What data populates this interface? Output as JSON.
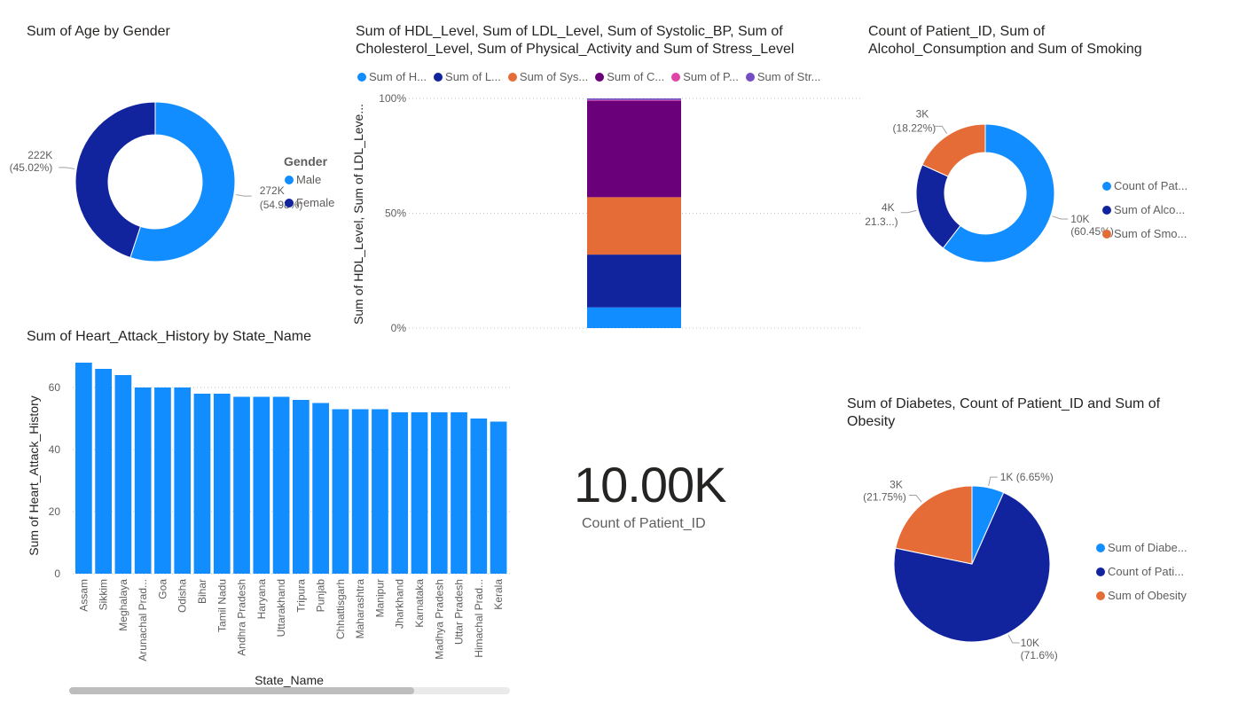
{
  "colors": {
    "light_blue": "#118DFF",
    "dark_blue": "#12239E",
    "orange": "#E66C37",
    "purple": "#6B007B",
    "pink": "#E044A7",
    "deep_purple": "#744EC2"
  },
  "chart_data": [
    {
      "id": "age_by_gender",
      "type": "pie",
      "donut": true,
      "title": "Sum of Age by Gender",
      "legend_title": "Gender",
      "categories": [
        "Male",
        "Female"
      ],
      "values": [
        272,
        222
      ],
      "value_labels": [
        "272K",
        "222K"
      ],
      "percent_labels": [
        "(54.98%)",
        "(45.02%)"
      ],
      "legend_placement": "right"
    },
    {
      "id": "health_levels",
      "type": "bar",
      "stacked_percent": true,
      "title_line1": "Sum of HDL_Level, Sum of LDL_Level, Sum of Systolic_BP, Sum of",
      "title_line2": "Cholesterol_Level, Sum of Physical_Activity and Sum of Stress_Level",
      "ylabel": "Sum of HDL_Level, Sum of LDL_Leve...",
      "yticks": [
        "100%",
        "50%",
        "0%"
      ],
      "ylim": [
        0,
        100
      ],
      "grid": true,
      "legend_placement": "top",
      "series": [
        {
          "name": "Sum of H...",
          "values": [
            9
          ]
        },
        {
          "name": "Sum of L...",
          "values": [
            23
          ]
        },
        {
          "name": "Sum of Sys...",
          "values": [
            25
          ]
        },
        {
          "name": "Sum of C...",
          "values": [
            42
          ]
        },
        {
          "name": "Sum of P...",
          "values": [
            0.3
          ]
        },
        {
          "name": "Sum of Str...",
          "values": [
            0.7
          ]
        }
      ]
    },
    {
      "id": "patient_alcohol_smoking",
      "type": "pie",
      "donut": true,
      "title_line1": "Count of Patient_ID, Sum of",
      "title_line2": "Alcohol_Consumption and Sum of Smoking",
      "legend_placement": "right",
      "categories": [
        "Count of Pat...",
        "Sum of Alco...",
        "Sum of Smo..."
      ],
      "values": [
        60.45,
        21.33,
        18.22
      ],
      "value_labels": [
        "10K",
        "4K",
        "3K"
      ],
      "percent_labels": [
        "(60.45%)",
        "(21.3...)",
        "(18.22%)"
      ]
    },
    {
      "id": "heart_attack_by_state",
      "type": "bar",
      "title": "Sum of Heart_Attack_History by State_Name",
      "xlabel": "State_Name",
      "ylabel": "Sum of Heart_Attack_History",
      "yticks": [
        0,
        20,
        40,
        60
      ],
      "ylim": [
        0,
        70
      ],
      "grid": true,
      "categories": [
        "Assam",
        "Sikkim",
        "Meghalaya",
        "Arunachal Prad...",
        "Goa",
        "Odisha",
        "Bihar",
        "Tamil Nadu",
        "Andhra Pradesh",
        "Haryana",
        "Uttarakhand",
        "Tripura",
        "Punjab",
        "Chhattisgarh",
        "Maharashtra",
        "Manipur",
        "Jharkhand",
        "Karnataka",
        "Madhya Pradesh",
        "Uttar Pradesh",
        "Himachal Prad...",
        "Kerala"
      ],
      "values": [
        68,
        66,
        64,
        60,
        60,
        60,
        58,
        58,
        57,
        57,
        57,
        56,
        55,
        53,
        53,
        53,
        52,
        52,
        52,
        52,
        50,
        49
      ]
    },
    {
      "id": "patient_count_card",
      "type": "table",
      "value": "10.00K",
      "label": "Count of Patient_ID"
    },
    {
      "id": "diabetes_patient_obesity",
      "type": "pie",
      "donut": false,
      "title_line1": "Sum of Diabetes, Count of Patient_ID and Sum of",
      "title_line2": "Obesity",
      "legend_placement": "right",
      "categories": [
        "Sum of Diabe...",
        "Count of Pati...",
        "Sum of Obesity"
      ],
      "values": [
        6.65,
        71.6,
        21.75
      ],
      "value_labels": [
        "1K",
        "10K",
        "3K"
      ],
      "percent_labels": [
        "(6.65%)",
        "(71.6%)",
        "(21.75%)"
      ]
    }
  ]
}
